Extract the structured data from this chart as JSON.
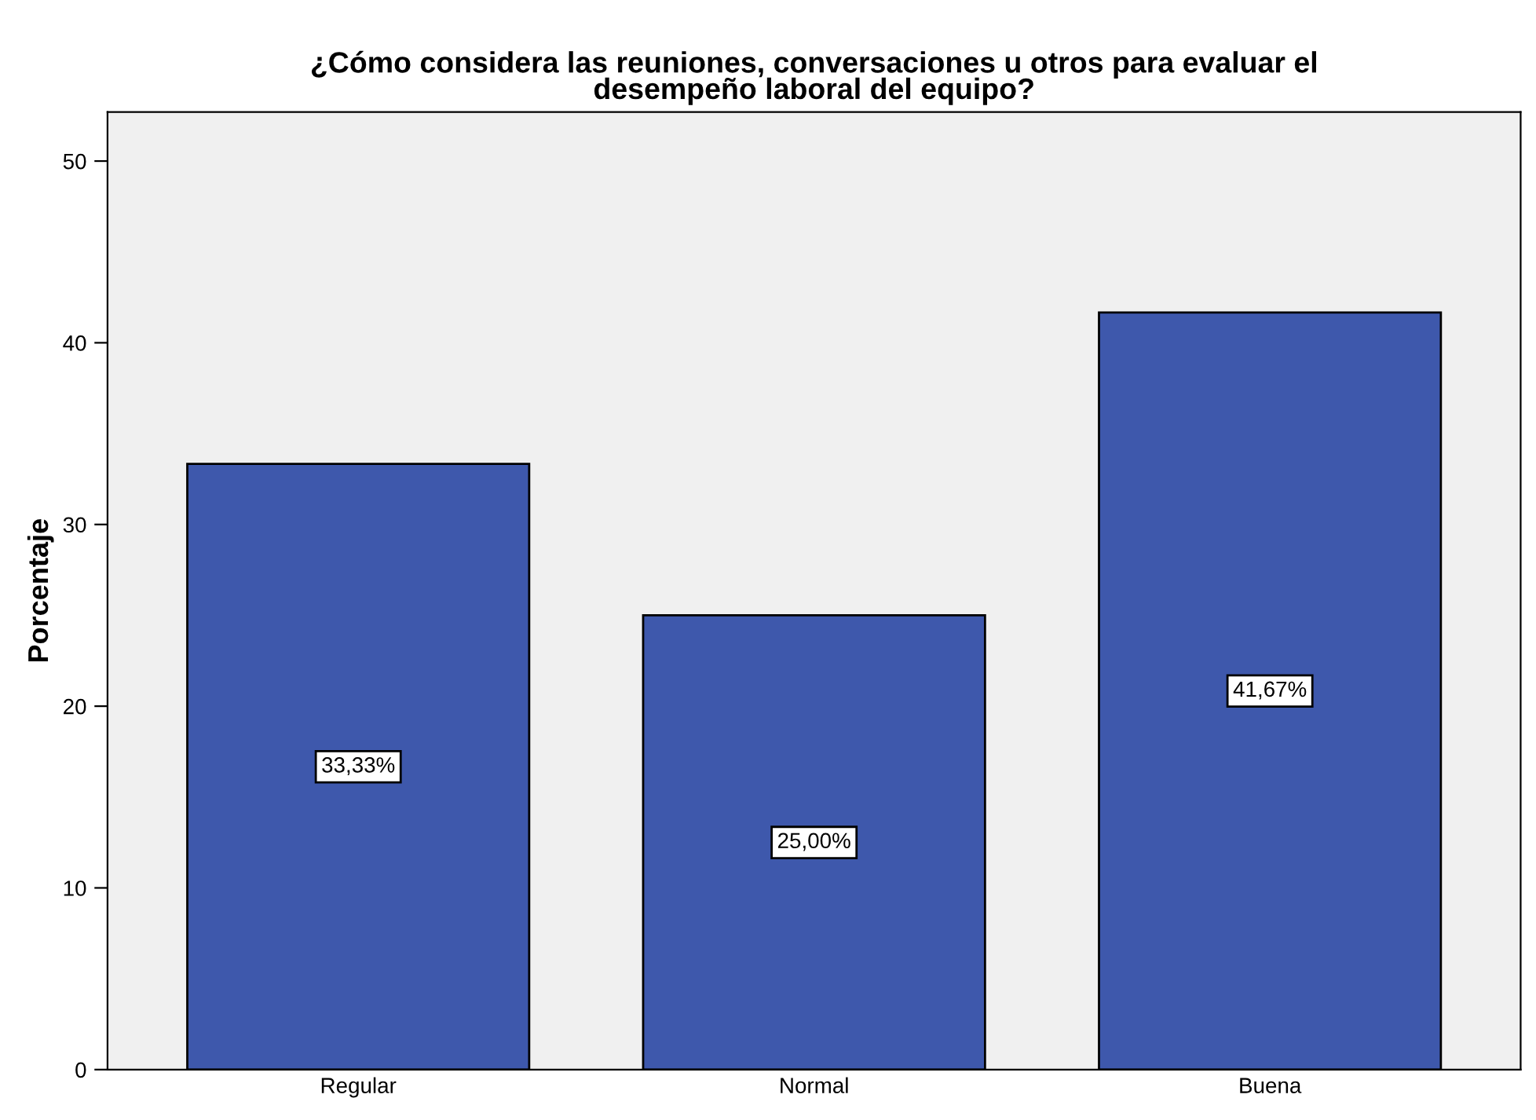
{
  "chart_data": {
    "type": "bar",
    "title": "¿Cómo considera las reuniones, conversaciones u otros para evaluar el\ndesempeño laboral del equipo?",
    "ylabel": "Porcentaje",
    "categories": [
      "Regular",
      "Normal",
      "Buena"
    ],
    "values": [
      33.33,
      25.0,
      41.67
    ],
    "value_labels": [
      "33,33%",
      "25,00%",
      "41,67%"
    ],
    "color": "#3e58ac",
    "ylim": [
      0,
      52.7
    ],
    "yticks": [
      0,
      10,
      20,
      30,
      40,
      50
    ],
    "grid": false,
    "legend": false
  }
}
